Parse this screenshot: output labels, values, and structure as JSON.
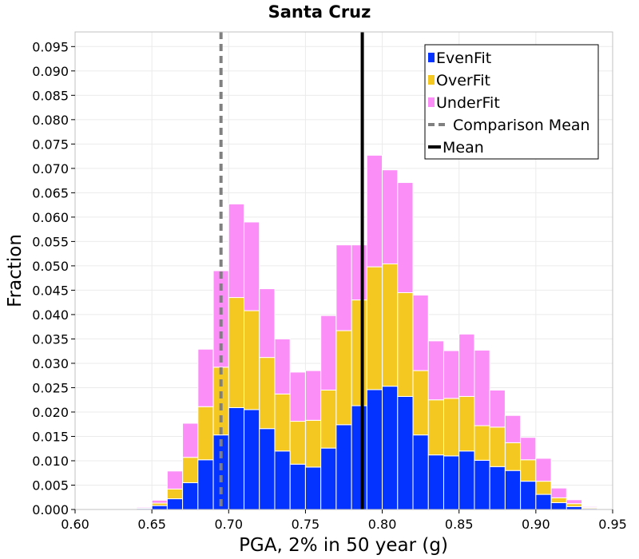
{
  "chart_data": {
    "type": "bar",
    "stacked": true,
    "title": "Santa Cruz",
    "xlabel": "PGA, 2% in 50 year (g)",
    "ylabel": "Fraction",
    "xlim": [
      0.6,
      0.95
    ],
    "ylim": [
      0,
      0.098
    ],
    "xticks": [
      "0.60",
      "0.65",
      "0.70",
      "0.75",
      "0.80",
      "0.85",
      "0.90",
      "0.95"
    ],
    "yticks": [
      "0.000",
      "0.005",
      "0.010",
      "0.015",
      "0.020",
      "0.025",
      "0.030",
      "0.035",
      "0.040",
      "0.045",
      "0.050",
      "0.055",
      "0.060",
      "0.065",
      "0.070",
      "0.075",
      "0.080",
      "0.085",
      "0.090",
      "0.095"
    ],
    "grid": true,
    "legend_position": "top-right",
    "bin_width": 0.01,
    "bin_starts": [
      0.6,
      0.61,
      0.62,
      0.63,
      0.64,
      0.65,
      0.66,
      0.67,
      0.68,
      0.69,
      0.7,
      0.71,
      0.72,
      0.73,
      0.74,
      0.75,
      0.76,
      0.77,
      0.78,
      0.79,
      0.8,
      0.81,
      0.82,
      0.83,
      0.84,
      0.85,
      0.86,
      0.87,
      0.88,
      0.89,
      0.9,
      0.91,
      0.92,
      0.93,
      0.94
    ],
    "series": [
      {
        "name": "EvenFit",
        "color": "#0433ff",
        "values": [
          0,
          0,
          0,
          0,
          0.0002,
          0.0008,
          0.0022,
          0.0055,
          0.0102,
          0.0153,
          0.0209,
          0.0205,
          0.0166,
          0.012,
          0.0093,
          0.0087,
          0.0126,
          0.0174,
          0.0213,
          0.0246,
          0.0253,
          0.0232,
          0.0153,
          0.0112,
          0.011,
          0.012,
          0.0101,
          0.0088,
          0.008,
          0.0058,
          0.0031,
          0.0014,
          0.0006,
          0.0002,
          0
        ]
      },
      {
        "name": "OverFit",
        "color": "#f4c820",
        "values": [
          0,
          0,
          0,
          0,
          0.0001,
          0.0005,
          0.002,
          0.0052,
          0.0109,
          0.0139,
          0.0226,
          0.0203,
          0.0146,
          0.0117,
          0.0088,
          0.0096,
          0.0119,
          0.0193,
          0.0217,
          0.0252,
          0.0251,
          0.0213,
          0.0132,
          0.0113,
          0.0118,
          0.0112,
          0.0071,
          0.0081,
          0.0057,
          0.0044,
          0.0027,
          0.001,
          0.0006,
          0.0002,
          0.0001
        ]
      },
      {
        "name": "UnderFit",
        "color": "#fb8ef7",
        "values": [
          0,
          0,
          0,
          0.0001,
          0.0002,
          0.0006,
          0.0037,
          0.007,
          0.0118,
          0.0198,
          0.0192,
          0.0182,
          0.0141,
          0.0113,
          0.0101,
          0.0102,
          0.0153,
          0.0176,
          0.0113,
          0.0229,
          0.0193,
          0.0226,
          0.0155,
          0.0121,
          0.0098,
          0.0128,
          0.0155,
          0.0076,
          0.0056,
          0.0046,
          0.0047,
          0.002,
          0.0008,
          0.0002,
          0.0001
        ]
      }
    ],
    "vlines": [
      {
        "name": "Comparison Mean",
        "x": 0.695,
        "color": "#808080",
        "dashed": true
      },
      {
        "name": "Mean",
        "x": 0.787,
        "color": "#000000",
        "dashed": false
      }
    ],
    "legend": [
      "EvenFit",
      "OverFit",
      "UnderFit",
      "Comparison Mean",
      "Mean"
    ]
  }
}
